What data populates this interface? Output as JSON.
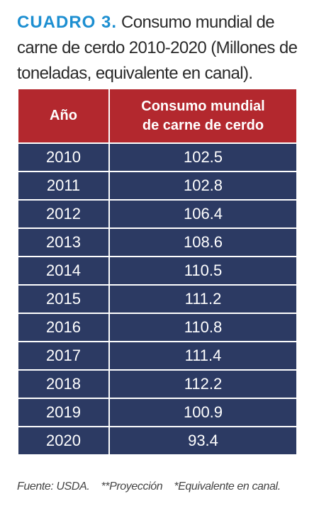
{
  "title": {
    "label": "CUADRO 3.",
    "text": "Consumo mundial de carne de cerdo 2010-2020 (Millones de toneladas, equivalente en canal)."
  },
  "table": {
    "header": [
      "Año",
      "Consumo mundial de carne de cerdo"
    ],
    "rows": [
      [
        2010,
        102.5
      ],
      [
        2011,
        102.8
      ],
      [
        2012,
        106.4
      ],
      [
        2013,
        108.6
      ],
      [
        2014,
        110.5
      ],
      [
        2015,
        111.2
      ],
      [
        2016,
        110.8
      ],
      [
        2017,
        111.4
      ],
      [
        2018,
        112.2
      ],
      [
        2019,
        100.9
      ],
      [
        2020,
        93.4
      ]
    ]
  },
  "footnote": [
    "Fuente: USDA.",
    "**Proyección",
    "*Equivalente en canal."
  ]
}
